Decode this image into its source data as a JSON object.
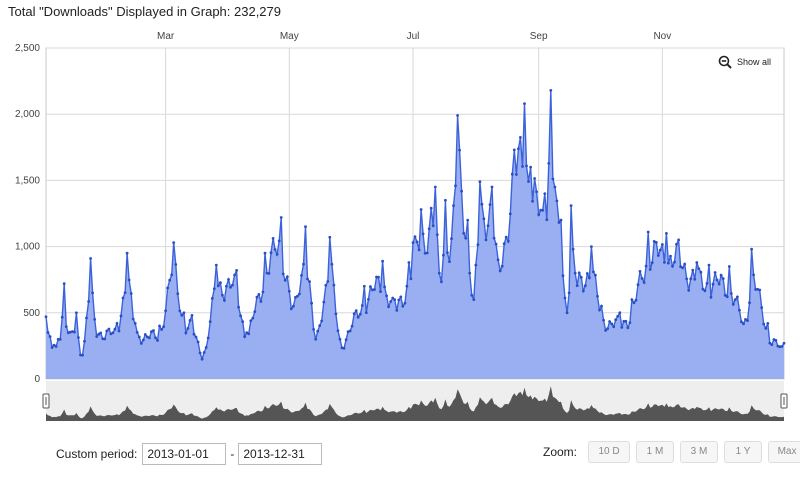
{
  "header": {
    "total_text": "Total \"Downloads\" Displayed in Graph: 232,279"
  },
  "controls": {
    "show_all": "Show all",
    "custom_period_label": "Custom period:",
    "start_date": "2013-01-01",
    "end_date": "2013-12-31",
    "date_separator": "-",
    "zoom_label": "Zoom:",
    "zoom_buttons": [
      "10 D",
      "1 M",
      "3 M",
      "1 Y",
      "Max"
    ]
  },
  "colors": {
    "line": "#3b62d9",
    "fill": "#9aaff2",
    "grid": "#d8d8d8",
    "navigator": "#555555"
  },
  "chart_data": {
    "type": "area",
    "x_start": "2013-01-01",
    "x_end": "2013-12-31",
    "x_tick_labels": [
      "Mar",
      "May",
      "Jul",
      "Sep",
      "Nov"
    ],
    "x_tick_dates": [
      "2013-03-01",
      "2013-05-01",
      "2013-07-01",
      "2013-09-01",
      "2013-11-01"
    ],
    "y_ticks": [
      0,
      500,
      1000,
      1500,
      2000,
      2500
    ],
    "y_tick_labels": [
      "0",
      "500",
      "1,000",
      "1,500",
      "2,000",
      "2,500"
    ],
    "ylim": [
      0,
      2500
    ],
    "grid": true,
    "navigator_range": [
      "2013-01-01",
      "2013-12-31"
    ],
    "anchor_values": [
      [
        "2013-01-01",
        470
      ],
      [
        "2013-01-03",
        320
      ],
      [
        "2013-01-07",
        300
      ],
      [
        "2013-01-10",
        720
      ],
      [
        "2013-01-12",
        350
      ],
      [
        "2013-01-16",
        500
      ],
      [
        "2013-01-19",
        180
      ],
      [
        "2013-01-23",
        910
      ],
      [
        "2013-01-25",
        450
      ],
      [
        "2013-02-05",
        420
      ],
      [
        "2013-02-10",
        950
      ],
      [
        "2013-02-14",
        420
      ],
      [
        "2013-02-26",
        400
      ],
      [
        "2013-03-05",
        1030
      ],
      [
        "2013-03-10",
        500
      ],
      [
        "2013-03-14",
        480
      ],
      [
        "2013-03-20",
        200
      ],
      [
        "2013-03-26",
        860
      ],
      [
        "2013-04-05",
        820
      ],
      [
        "2013-04-10",
        350
      ],
      [
        "2013-04-19",
        950
      ],
      [
        "2013-04-27",
        1220
      ],
      [
        "2013-05-03",
        550
      ],
      [
        "2013-05-09",
        1150
      ],
      [
        "2013-05-14",
        300
      ],
      [
        "2013-05-21",
        1070
      ],
      [
        "2013-05-26",
        300
      ],
      [
        "2013-06-07",
        700
      ],
      [
        "2013-06-16",
        890
      ],
      [
        "2013-06-22",
        600
      ],
      [
        "2013-06-29",
        880
      ],
      [
        "2013-07-01",
        1030
      ],
      [
        "2013-07-05",
        1280
      ],
      [
        "2013-07-10",
        1290
      ],
      [
        "2013-07-12",
        1450
      ],
      [
        "2013-07-14",
        800
      ],
      [
        "2013-07-17",
        1350
      ],
      [
        "2013-07-20",
        1060
      ],
      [
        "2013-07-23",
        1990
      ],
      [
        "2013-07-28",
        1200
      ],
      [
        "2013-07-31",
        600
      ],
      [
        "2013-08-03",
        1490
      ],
      [
        "2013-08-09",
        1450
      ],
      [
        "2013-08-12",
        900
      ],
      [
        "2013-08-20",
        1730
      ],
      [
        "2013-08-25",
        2080
      ],
      [
        "2013-08-28",
        1600
      ],
      [
        "2013-09-04",
        1400
      ],
      [
        "2013-09-07",
        2180
      ],
      [
        "2013-09-09",
        1450
      ],
      [
        "2013-09-12",
        1200
      ],
      [
        "2013-09-15",
        500
      ],
      [
        "2013-09-17",
        1310
      ],
      [
        "2013-09-19",
        800
      ],
      [
        "2013-09-27",
        1000
      ],
      [
        "2013-10-02",
        550
      ],
      [
        "2013-10-11",
        500
      ],
      [
        "2013-10-17",
        600
      ],
      [
        "2013-10-25",
        1110
      ],
      [
        "2013-11-03",
        1100
      ],
      [
        "2013-11-09",
        1050
      ],
      [
        "2013-11-18",
        880
      ],
      [
        "2013-11-24",
        860
      ],
      [
        "2013-12-04",
        850
      ],
      [
        "2013-12-12",
        450
      ],
      [
        "2013-12-15",
        980
      ],
      [
        "2013-12-23",
        420
      ],
      [
        "2013-12-31",
        270
      ]
    ]
  }
}
